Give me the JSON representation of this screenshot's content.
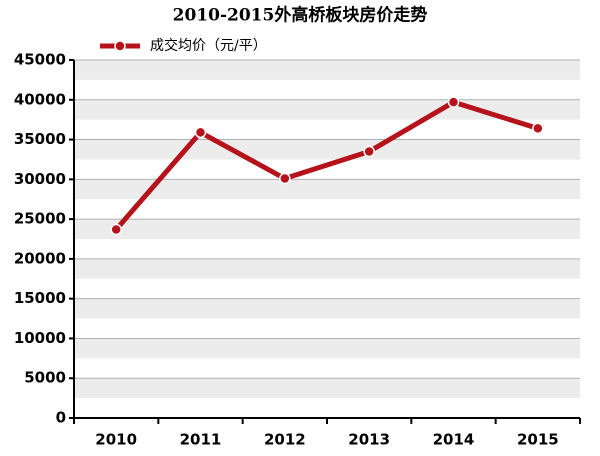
{
  "chart_data": {
    "type": "line",
    "title": "2010-2015外高桥板块房价走势",
    "categories": [
      "2010",
      "2011",
      "2012",
      "2013",
      "2014",
      "2015"
    ],
    "series": [
      {
        "name": "成交均价（元/平）",
        "color": "#b5121b",
        "values": [
          23700,
          35900,
          30100,
          33500,
          39700,
          36400
        ]
      }
    ],
    "ylim": [
      0,
      45000
    ],
    "yticks": [
      0,
      5000,
      10000,
      15000,
      20000,
      25000,
      30000,
      35000,
      40000,
      45000
    ],
    "grid": true
  }
}
